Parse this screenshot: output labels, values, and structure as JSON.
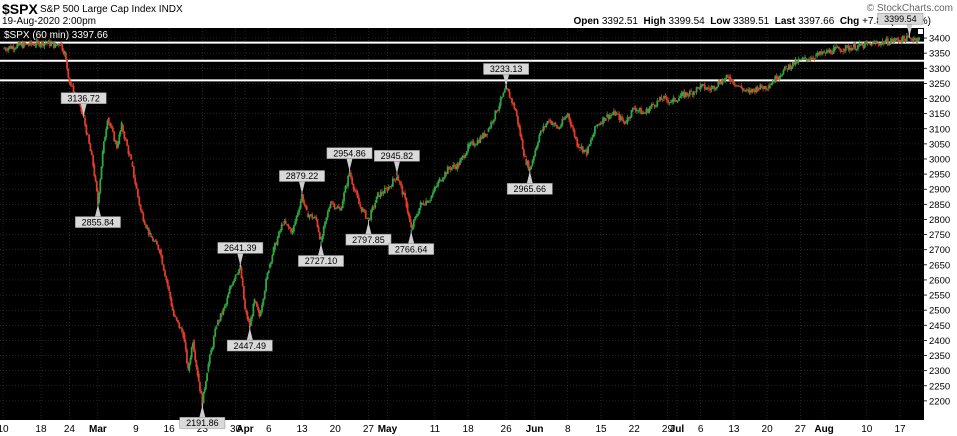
{
  "header": {
    "symbol": "$SPX",
    "name": "S&P 500 Large Cap Index",
    "exchange": "INDX",
    "date": "19-Aug-2020 2:00pm",
    "logo": "© StockCharts.com",
    "open_label": "Open",
    "open": "3392.51",
    "high_label": "High",
    "high": "3399.54",
    "low_label": "Low",
    "low": "3389.51",
    "last_label": "Last",
    "last": "3397.66",
    "chg_label": "Chg",
    "chg": "+7.88 (+0.23%)"
  },
  "chart_data": {
    "type": "candlestick",
    "legend": "$SPX (60 min) 3397.66",
    "interval": "60 min",
    "ylim": [
      2150,
      3420
    ],
    "y_ticks": [
      2200,
      2250,
      2300,
      2350,
      2400,
      2450,
      2500,
      2550,
      2600,
      2650,
      2700,
      2750,
      2800,
      2850,
      2900,
      2950,
      3000,
      3050,
      3100,
      3150,
      3200,
      3250,
      3300,
      3350,
      3400
    ],
    "x_ticks": [
      {
        "label": "10",
        "day": 0
      },
      {
        "label": "18",
        "day": 8
      },
      {
        "label": "24",
        "day": 14
      },
      {
        "label": "Mar",
        "day": 20
      },
      {
        "label": "9",
        "day": 28
      },
      {
        "label": "16",
        "day": 35
      },
      {
        "label": "23",
        "day": 42
      },
      {
        "label": "30",
        "day": 49
      },
      {
        "label": "Apr",
        "day": 51
      },
      {
        "label": "6",
        "day": 56
      },
      {
        "label": "13",
        "day": 63
      },
      {
        "label": "20",
        "day": 70
      },
      {
        "label": "27",
        "day": 77
      },
      {
        "label": "May",
        "day": 81
      },
      {
        "label": "11",
        "day": 91
      },
      {
        "label": "18",
        "day": 98
      },
      {
        "label": "26",
        "day": 106
      },
      {
        "label": "Jun",
        "day": 112
      },
      {
        "label": "8",
        "day": 119
      },
      {
        "label": "15",
        "day": 126
      },
      {
        "label": "22",
        "day": 133
      },
      {
        "label": "29",
        "day": 140
      },
      {
        "label": "Jul",
        "day": 142
      },
      {
        "label": "6",
        "day": 147
      },
      {
        "label": "13",
        "day": 154
      },
      {
        "label": "20",
        "day": 161
      },
      {
        "label": "27",
        "day": 168
      },
      {
        "label": "Aug",
        "day": 173
      },
      {
        "label": "10",
        "day": 182
      },
      {
        "label": "17",
        "day": 189
      }
    ],
    "x_range": [
      0,
      193
    ],
    "path": [
      [
        0,
        3365
      ],
      [
        3,
        3375
      ],
      [
        6,
        3380
      ],
      [
        9,
        3385
      ],
      [
        11,
        3376
      ],
      [
        12,
        3385
      ],
      [
        13,
        3350
      ],
      [
        14,
        3255
      ],
      [
        16,
        3180
      ],
      [
        17,
        3136.72
      ],
      [
        19,
        2980
      ],
      [
        20,
        2855.84
      ],
      [
        21,
        3020
      ],
      [
        22,
        3136.72
      ],
      [
        24,
        3040
      ],
      [
        25,
        3110
      ],
      [
        27,
        2990
      ],
      [
        29,
        2830
      ],
      [
        31,
        2745
      ],
      [
        33,
        2700
      ],
      [
        35,
        2560
      ],
      [
        36,
        2480
      ],
      [
        38,
        2420
      ],
      [
        39,
        2300
      ],
      [
        40,
        2400
      ],
      [
        41,
        2290
      ],
      [
        42,
        2191.86
      ],
      [
        43,
        2300
      ],
      [
        45,
        2450
      ],
      [
        47,
        2520
      ],
      [
        48,
        2580
      ],
      [
        49,
        2620
      ],
      [
        50,
        2641.39
      ],
      [
        51,
        2500
      ],
      [
        52,
        2447.49
      ],
      [
        53,
        2530
      ],
      [
        54,
        2480
      ],
      [
        56,
        2640
      ],
      [
        57,
        2700
      ],
      [
        59,
        2790
      ],
      [
        61,
        2760
      ],
      [
        63,
        2879.22
      ],
      [
        64,
        2820
      ],
      [
        66,
        2800
      ],
      [
        67,
        2727.1
      ],
      [
        69,
        2860
      ],
      [
        71,
        2830
      ],
      [
        73,
        2954.86
      ],
      [
        75,
        2850
      ],
      [
        77,
        2797.85
      ],
      [
        79,
        2880
      ],
      [
        81,
        2900
      ],
      [
        83,
        2945.82
      ],
      [
        85,
        2850
      ],
      [
        86,
        2766.64
      ],
      [
        88,
        2850
      ],
      [
        90,
        2870
      ],
      [
        92,
        2930
      ],
      [
        94,
        2970
      ],
      [
        96,
        2980
      ],
      [
        98,
        3040
      ],
      [
        100,
        3060
      ],
      [
        102,
        3090
      ],
      [
        104,
        3160
      ],
      [
        106,
        3233.13
      ],
      [
        107,
        3200
      ],
      [
        108,
        3160
      ],
      [
        109,
        3080
      ],
      [
        110,
        3000
      ],
      [
        111,
        2965.66
      ],
      [
        113,
        3080
      ],
      [
        115,
        3130
      ],
      [
        117,
        3100
      ],
      [
        119,
        3150
      ],
      [
        121,
        3050
      ],
      [
        123,
        3020
      ],
      [
        125,
        3110
      ],
      [
        127,
        3140
      ],
      [
        129,
        3150
      ],
      [
        131,
        3120
      ],
      [
        133,
        3170
      ],
      [
        135,
        3150
      ],
      [
        137,
        3180
      ],
      [
        139,
        3200
      ],
      [
        141,
        3190
      ],
      [
        143,
        3210
      ],
      [
        145,
        3220
      ],
      [
        147,
        3240
      ],
      [
        149,
        3230
      ],
      [
        151,
        3255
      ],
      [
        153,
        3270
      ],
      [
        155,
        3240
      ],
      [
        157,
        3220
      ],
      [
        159,
        3235
      ],
      [
        161,
        3240
      ],
      [
        163,
        3270
      ],
      [
        165,
        3300
      ],
      [
        167,
        3320
      ],
      [
        169,
        3330
      ],
      [
        171,
        3340
      ],
      [
        173,
        3350
      ],
      [
        175,
        3360
      ],
      [
        177,
        3365
      ],
      [
        179,
        3370
      ],
      [
        181,
        3375
      ],
      [
        183,
        3380
      ],
      [
        185,
        3385
      ],
      [
        187,
        3390
      ],
      [
        189,
        3395
      ],
      [
        191,
        3399.54
      ],
      [
        193,
        3397.66
      ]
    ],
    "annotations": [
      {
        "text": "3136.72",
        "day": 17,
        "value": 3136.72,
        "pos": "above"
      },
      {
        "text": "2855.84",
        "day": 20,
        "value": 2855.84,
        "pos": "below"
      },
      {
        "text": "2191.86",
        "day": 42,
        "value": 2191.86,
        "pos": "below"
      },
      {
        "text": "2641.39",
        "day": 50,
        "value": 2641.39,
        "pos": "above"
      },
      {
        "text": "2447.49",
        "day": 52,
        "value": 2447.49,
        "pos": "below"
      },
      {
        "text": "2879.22",
        "day": 63,
        "value": 2879.22,
        "pos": "above"
      },
      {
        "text": "2727.10",
        "day": 67,
        "value": 2727.1,
        "pos": "below"
      },
      {
        "text": "2954.86",
        "day": 73,
        "value": 2954.86,
        "pos": "above"
      },
      {
        "text": "2797.85",
        "day": 77,
        "value": 2797.85,
        "pos": "below"
      },
      {
        "text": "2945.82",
        "day": 83,
        "value": 2945.82,
        "pos": "above"
      },
      {
        "text": "2766.64",
        "day": 86,
        "value": 2766.64,
        "pos": "below"
      },
      {
        "text": "3233.13",
        "day": 106,
        "value": 3233.13,
        "pos": "above"
      },
      {
        "text": "2965.66",
        "day": 111,
        "value": 2965.66,
        "pos": "below"
      },
      {
        "text": "3399.54",
        "day": 191,
        "value": 3399.54,
        "pos": "above"
      }
    ],
    "horizontal_lines": [
      3385,
      3325,
      3260
    ],
    "colors": {
      "up": "#2ea843",
      "down": "#e23c2b",
      "background": "#000000",
      "grid": "#3a3a3a",
      "text": "#000000",
      "annotation_bg": "#d9d9d9"
    }
  }
}
